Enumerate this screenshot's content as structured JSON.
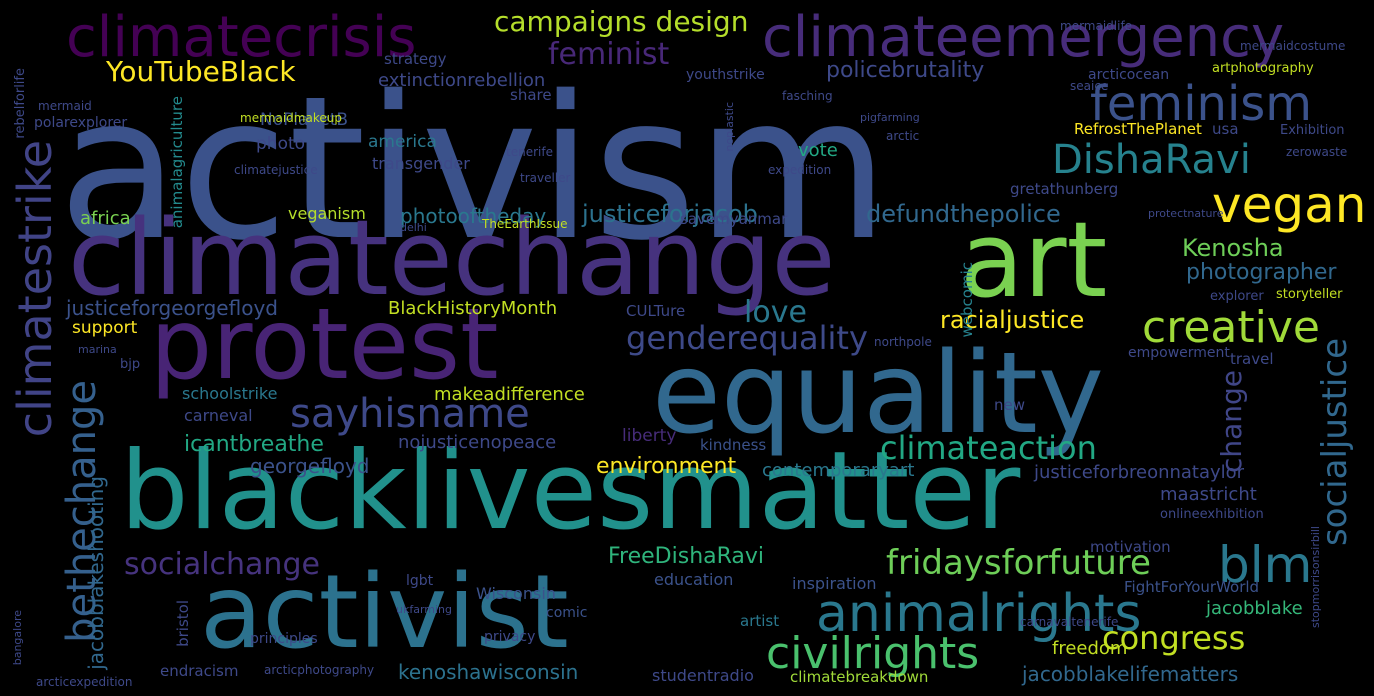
{
  "words": [
    {
      "text": "activism",
      "color": "#3b528b"
    },
    {
      "text": "climatechange",
      "color": "#46327e"
    },
    {
      "text": "blacklivesmatter",
      "color": "#21918c"
    },
    {
      "text": "protest",
      "color": "#482475"
    },
    {
      "text": "equality",
      "color": "#31688e"
    },
    {
      "text": "activist",
      "color": "#2c728e"
    },
    {
      "text": "art",
      "color": "#7ad151"
    },
    {
      "text": "climateemergency",
      "color": "#472c7a"
    },
    {
      "text": "climatecrisis",
      "color": "#440154"
    },
    {
      "text": "feminism",
      "color": "#3b528b"
    },
    {
      "text": "vegan",
      "color": "#fde725"
    },
    {
      "text": "DishaRavi",
      "color": "#26828e"
    },
    {
      "text": "creative",
      "color": "#a0da39"
    },
    {
      "text": "animalrights",
      "color": "#2a788e"
    },
    {
      "text": "civilrights",
      "color": "#4ac16d"
    },
    {
      "text": "sayhisname",
      "color": "#3e4989"
    },
    {
      "text": "climatestrike",
      "color": "#414487"
    },
    {
      "text": "bethechange",
      "color": "#35608d"
    },
    {
      "text": "blm",
      "color": "#2a788e"
    },
    {
      "text": "socialjustice",
      "color": "#31688e"
    },
    {
      "text": "fridaysforfuture",
      "color": "#6ece58"
    },
    {
      "text": "socialchange",
      "color": "#46337e"
    },
    {
      "text": "congress",
      "color": "#c2df23"
    },
    {
      "text": "climateaction",
      "color": "#22a884"
    },
    {
      "text": "genderequality",
      "color": "#3e4a89"
    },
    {
      "text": "campaigns design",
      "color": "#b5de2b"
    },
    {
      "text": "YouTubeBlack",
      "color": "#fde725"
    },
    {
      "text": "feminist",
      "color": "#482878"
    },
    {
      "text": "love",
      "color": "#2a788e"
    },
    {
      "text": "racialjustice",
      "color": "#fde725"
    },
    {
      "text": "change",
      "color": "#404688"
    },
    {
      "text": "jacobblakeshooting",
      "color": "#31688e"
    },
    {
      "text": "justiceforjacob",
      "color": "#2c728e"
    },
    {
      "text": "defundthepolice",
      "color": "#31688e"
    },
    {
      "text": "photographer",
      "color": "#31688e"
    },
    {
      "text": "policebrutality",
      "color": "#3e4989"
    },
    {
      "text": "Kenosha",
      "color": "#6ece58"
    },
    {
      "text": "justiceforgeorgefloyd",
      "color": "#3b528b"
    },
    {
      "text": "extinctionrebellion",
      "color": "#3e4989"
    },
    {
      "text": "environment",
      "color": "#fde725"
    },
    {
      "text": "georgefloyd",
      "color": "#3b528b"
    },
    {
      "text": "icantbreathe",
      "color": "#22a884"
    },
    {
      "text": "FreeDishaRavi",
      "color": "#2fb47c"
    },
    {
      "text": "kenoshawisconsin",
      "color": "#2c728e"
    },
    {
      "text": "jacobblakelifematters",
      "color": "#31688e"
    },
    {
      "text": "justiceforbreonnataylor",
      "color": "#3e4989"
    },
    {
      "text": "contemporaryart",
      "color": "#2a788e"
    },
    {
      "text": "BlackHistoryMonth",
      "color": "#c2df23"
    },
    {
      "text": "makeadifference",
      "color": "#c2df23"
    },
    {
      "text": "nojusticenopeace",
      "color": "#3e4989"
    },
    {
      "text": "schoolstrike",
      "color": "#2a788e"
    },
    {
      "text": "photooftheday",
      "color": "#2a788e"
    },
    {
      "text": "veganism",
      "color": "#b5de2b"
    },
    {
      "text": "africa",
      "color": "#7ad151"
    },
    {
      "text": "support",
      "color": "#fde725"
    },
    {
      "text": "animalagriculture",
      "color": "#238a8d"
    },
    {
      "text": "NoPlanetB",
      "color": "#3b528b"
    },
    {
      "text": "RefrostThePlanet",
      "color": "#fde725"
    },
    {
      "text": "jacobblake",
      "color": "#35b779"
    },
    {
      "text": "studentradio",
      "color": "#3e4989"
    },
    {
      "text": "climatebreakdown",
      "color": "#a0da39"
    },
    {
      "text": "endracism",
      "color": "#3e4989"
    },
    {
      "text": "arcticphotography",
      "color": "#3e4989"
    },
    {
      "text": "freedom",
      "color": "#c2df23"
    },
    {
      "text": "maastricht",
      "color": "#3e4989"
    },
    {
      "text": "education",
      "color": "#3b528b"
    },
    {
      "text": "inspiration",
      "color": "#3b528b"
    },
    {
      "text": "FightForYourWorld",
      "color": "#3b528b"
    },
    {
      "text": "Wisconsin",
      "color": "#3b528b"
    },
    {
      "text": "artist",
      "color": "#2a788e"
    },
    {
      "text": "comic",
      "color": "#3b528b"
    },
    {
      "text": "kindness",
      "color": "#3b528b"
    },
    {
      "text": "liberty",
      "color": "#472c7a"
    },
    {
      "text": "webcomic",
      "color": "#26828e"
    },
    {
      "text": "vote",
      "color": "#22a884"
    },
    {
      "text": "gretathunberg",
      "color": "#3e4989"
    },
    {
      "text": "savemyanmar",
      "color": "#3e4989"
    },
    {
      "text": "america",
      "color": "#2a788e"
    },
    {
      "text": "photo",
      "color": "#3e4989"
    },
    {
      "text": "transgender",
      "color": "#3e4989"
    },
    {
      "text": "share",
      "color": "#3e4989"
    },
    {
      "text": "strategy",
      "color": "#3e4989"
    },
    {
      "text": "youthstrike",
      "color": "#3e4989"
    },
    {
      "text": "arcticocean",
      "color": "#3e4989"
    },
    {
      "text": "artphotography",
      "color": "#c2df23"
    },
    {
      "text": "CULTure",
      "color": "#3e4989"
    },
    {
      "text": "bristol",
      "color": "#3e4989"
    },
    {
      "text": "carneval",
      "color": "#3e4989"
    },
    {
      "text": "motivation",
      "color": "#3e4989"
    },
    {
      "text": "travel",
      "color": "#3e4989"
    },
    {
      "text": "empowerment",
      "color": "#3e4989"
    },
    {
      "text": "explorer",
      "color": "#3e4989"
    },
    {
      "text": "storyteller",
      "color": "#3e4989"
    },
    {
      "text": "usa",
      "color": "#3e4989"
    },
    {
      "text": "Exhibition",
      "color": "#3e4989"
    },
    {
      "text": "onlineexhibition",
      "color": "#3e4989"
    },
    {
      "text": "lgbt",
      "color": "#3e4989"
    },
    {
      "text": "principles",
      "color": "#3e4989"
    },
    {
      "text": "privacy",
      "color": "#3e4989"
    },
    {
      "text": "new",
      "color": "#3e4989"
    },
    {
      "text": "polarexplorer",
      "color": "#3e4989"
    },
    {
      "text": "mermaidmakeup",
      "color": "#3e4989"
    },
    {
      "text": "mermaid",
      "color": "#3e4989"
    },
    {
      "text": "rebelforlife",
      "color": "#3e4989"
    },
    {
      "text": "bjp",
      "color": "#3e4989"
    },
    {
      "text": "tenerife",
      "color": "#3e4989"
    },
    {
      "text": "traveller",
      "color": "#3e4989"
    },
    {
      "text": "expedition",
      "color": "#3e4989"
    },
    {
      "text": "arctic",
      "color": "#3e4989"
    },
    {
      "text": "fasching",
      "color": "#3e4989"
    },
    {
      "text": "mermaidlife",
      "color": "#3e4989"
    },
    {
      "text": "mermaidcostume",
      "color": "#3e4989"
    },
    {
      "text": "seaice",
      "color": "#3e4989"
    },
    {
      "text": "protectnature",
      "color": "#3e4989"
    },
    {
      "text": "zerowaste",
      "color": "#3e4989"
    },
    {
      "text": "northpole",
      "color": "#3e4989"
    },
    {
      "text": "climatejustice",
      "color": "#3e4989"
    },
    {
      "text": "TheEarthIssue",
      "color": "#3e4989"
    },
    {
      "text": "carnavaltenerife",
      "color": "#3e4989"
    },
    {
      "text": "arcticexpedition",
      "color": "#3e4989"
    },
    {
      "text": "ukfarming",
      "color": "#3e4989"
    },
    {
      "text": "stopmorrisonsirbill",
      "color": "#3e4989"
    },
    {
      "text": "bangalore",
      "color": "#3e4989"
    },
    {
      "text": "marina",
      "color": "#3e4989"
    },
    {
      "text": "delhi",
      "color": "#3e4989"
    },
    {
      "text": "noplastic",
      "color": "#3e4989"
    },
    {
      "text": "pigfarming",
      "color": "#3e4989"
    }
  ]
}
